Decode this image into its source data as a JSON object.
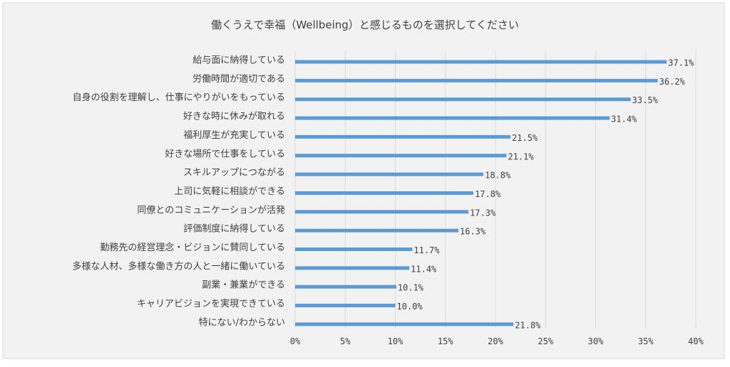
{
  "colors": {
    "bar": "#5b9bd5",
    "background": "#f2f2f2",
    "frame": "#d9d9d9",
    "grid": "#d9d9d9",
    "text": "#404040"
  },
  "chart_data": {
    "type": "bar",
    "orientation": "horizontal",
    "title": "働くうえで幸福（Wellbeing）と感じるものを選択してください",
    "xlabel": "",
    "ylabel": "",
    "xlim": [
      0,
      40
    ],
    "value_unit": "%",
    "grid": true,
    "categories": [
      "給与面に納得している",
      "労働時間が適切である",
      "自身の役割を理解し、仕事にやりがいをもっている",
      "好きな時に休みが取れる",
      "福利厚生が充実している",
      "好きな場所で仕事をしている",
      "スキルアップにつながる",
      "上司に気軽に相談ができる",
      "同僚とのコミュニケーションが活発",
      "評価制度に納得している",
      "勤務先の経営理念・ビジョンに賛同している",
      "多様な人材、多様な働き方の人と一緒に働いている",
      "副業・兼業ができる",
      "キャリアビジョンを実現できている",
      "特にない/わからない"
    ],
    "values": [
      37.1,
      36.2,
      33.5,
      31.4,
      21.5,
      21.1,
      18.8,
      17.8,
      17.3,
      16.3,
      11.7,
      11.4,
      10.1,
      10.0,
      21.8
    ],
    "data_labels": [
      "37.1%",
      "36.2%",
      "33.5%",
      "31.4%",
      "21.5%",
      "21.1%",
      "18.8%",
      "17.8%",
      "17.3%",
      "16.3%",
      "11.7%",
      "11.4%",
      "10.1%",
      "10.0%",
      "21.8%"
    ],
    "x_ticks": [
      0,
      5,
      10,
      15,
      20,
      25,
      30,
      35,
      40
    ],
    "x_tick_labels": [
      "0%",
      "5%",
      "10%",
      "15%",
      "20%",
      "25%",
      "30%",
      "35%",
      "40%"
    ]
  }
}
